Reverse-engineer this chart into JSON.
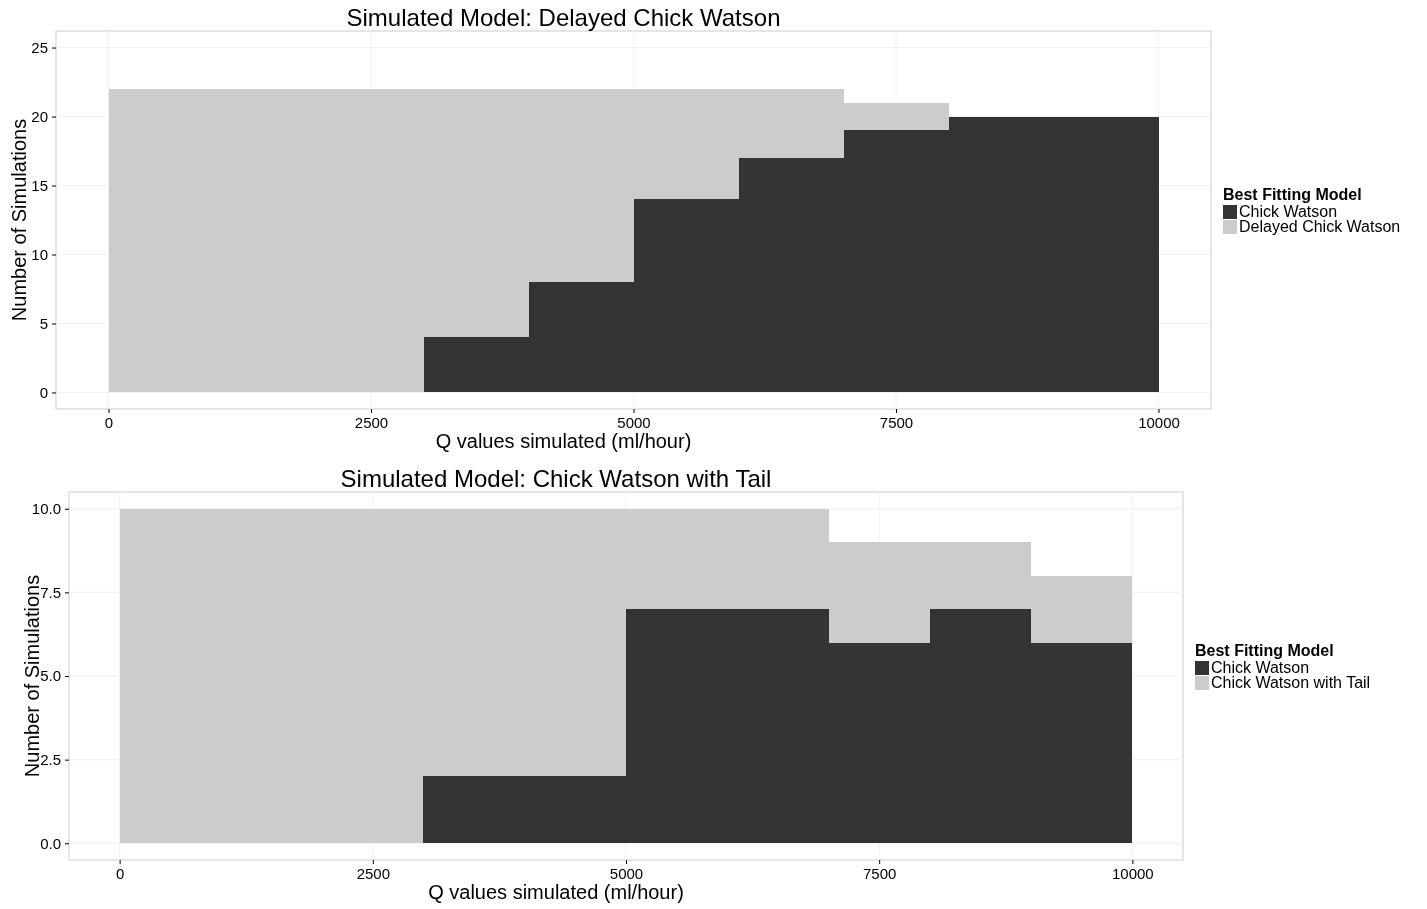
{
  "chart_data": [
    {
      "type": "bar",
      "title": "Simulated Model: Delayed Chick Watson",
      "xlabel": "Q values simulated (ml/hour)",
      "ylabel": "Number of Simulations",
      "legend_title": "Best Fitting Model",
      "legend": "right",
      "grid": true,
      "stacked": true,
      "x": [
        500,
        1500,
        2500,
        3500,
        4500,
        5500,
        6500,
        7500,
        8500,
        9500
      ],
      "xlim": [
        -500,
        10500
      ],
      "xticks": [
        0,
        2500,
        5000,
        7500,
        10000
      ],
      "ylim": [
        -1.2,
        26.2
      ],
      "yticks": [
        0,
        5,
        10,
        15,
        20,
        25
      ],
      "series": [
        {
          "name": "Chick Watson",
          "color": "#333333",
          "values": [
            0,
            0,
            0,
            4,
            8,
            14,
            17,
            19,
            20,
            20
          ]
        },
        {
          "name": "Delayed Chick Watson",
          "color": "#cccccc",
          "values": [
            22,
            22,
            22,
            18,
            14,
            8,
            5,
            2,
            0,
            0
          ]
        }
      ]
    },
    {
      "type": "bar",
      "title": "Simulated Model: Chick Watson with Tail",
      "xlabel": "Q values simulated (ml/hour)",
      "ylabel": "Number of Simulations",
      "legend_title": "Best Fitting Model",
      "legend": "right",
      "grid": true,
      "stacked": true,
      "x": [
        500,
        1500,
        2500,
        3500,
        4500,
        5500,
        6500,
        7500,
        8500,
        9500
      ],
      "xlim": [
        -500,
        10500
      ],
      "xticks": [
        0,
        2500,
        5000,
        7500,
        10000
      ],
      "ylim": [
        -0.5,
        10.5
      ],
      "yticks": [
        {
          "value": 0,
          "label": "0.0"
        },
        {
          "value": 2.5,
          "label": "2.5"
        },
        {
          "value": 5,
          "label": "5.0"
        },
        {
          "value": 7.5,
          "label": "7.5"
        },
        {
          "value": 10,
          "label": "10.0"
        }
      ],
      "series": [
        {
          "name": "Chick Watson",
          "color": "#333333",
          "values": [
            0,
            0,
            0,
            2,
            2,
            7,
            7,
            6,
            7,
            6
          ]
        },
        {
          "name": "Chick Watson with Tail",
          "color": "#cccccc",
          "values": [
            10,
            10,
            10,
            8,
            8,
            3,
            3,
            3,
            2,
            2
          ]
        }
      ]
    }
  ]
}
